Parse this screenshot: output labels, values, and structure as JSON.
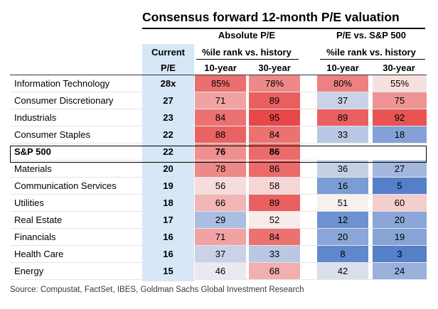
{
  "title": "Consensus forward 12-month P/E valuation",
  "headers": {
    "current_line1": "Current",
    "current_line2": "P/E",
    "absolute_group": "Absolute P/E",
    "absolute_sub": "%ile rank vs. history",
    "relative_group": "P/E vs. S&P 500",
    "relative_sub": "%ile rank vs. history",
    "col_10y": "10-year",
    "col_30y": "30-year"
  },
  "rows": [
    {
      "sector": "Information Technology",
      "pe": "28x",
      "abs10": "85%",
      "abs30": "78%",
      "rel10": "80%",
      "rel30": "55%"
    },
    {
      "sector": "Consumer Discretionary",
      "pe": "27",
      "abs10": "71",
      "abs30": "89",
      "rel10": "37",
      "rel30": "75"
    },
    {
      "sector": "Industrials",
      "pe": "23",
      "abs10": "84",
      "abs30": "95",
      "rel10": "89",
      "rel30": "92"
    },
    {
      "sector": "Consumer Staples",
      "pe": "22",
      "abs10": "88",
      "abs30": "84",
      "rel10": "33",
      "rel30": "18"
    },
    {
      "sector": "S&P 500",
      "pe": "22",
      "abs10": "76",
      "abs30": "86",
      "rel10": "",
      "rel30": ""
    },
    {
      "sector": "Materials",
      "pe": "20",
      "abs10": "78",
      "abs30": "86",
      "rel10": "36",
      "rel30": "27"
    },
    {
      "sector": "Communication Services",
      "pe": "19",
      "abs10": "56",
      "abs30": "58",
      "rel10": "16",
      "rel30": "5"
    },
    {
      "sector": "Utilities",
      "pe": "18",
      "abs10": "66",
      "abs30": "89",
      "rel10": "51",
      "rel30": "60"
    },
    {
      "sector": "Real Estate",
      "pe": "17",
      "abs10": "29",
      "abs30": "52",
      "rel10": "12",
      "rel30": "20"
    },
    {
      "sector": "Financials",
      "pe": "16",
      "abs10": "71",
      "abs30": "84",
      "rel10": "20",
      "rel30": "19"
    },
    {
      "sector": "Health Care",
      "pe": "16",
      "abs10": "37",
      "abs30": "33",
      "rel10": "8",
      "rel30": "3"
    },
    {
      "sector": "Energy",
      "pe": "15",
      "abs10": "46",
      "abs30": "68",
      "rel10": "42",
      "rel30": "24"
    }
  ],
  "source": "Source: Compustat, FactSet, IBES, Goldman Sachs Global Investment Research"
}
